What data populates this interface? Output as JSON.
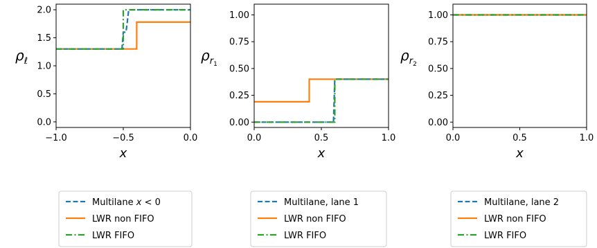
{
  "chart_data": [
    {
      "type": "line",
      "ylabel_base": "ρ",
      "ylabel_sub": "ℓ",
      "ylabel_subsub": "",
      "xlabel": "x",
      "xlim": [
        -1.0,
        0.0
      ],
      "ylim": [
        -0.1,
        2.1
      ],
      "xticks": [
        -1.0,
        -0.5,
        0.0
      ],
      "xtick_labels": [
        "−1.0",
        "−0.5",
        "0.0"
      ],
      "yticks": [
        0.0,
        0.5,
        1.0,
        1.5,
        2.0
      ],
      "ytick_labels": [
        "0.0",
        "0.5",
        "1.0",
        "1.5",
        "2.0"
      ],
      "legend": [
        {
          "text_parts": [
            "Multilane ",
            "x",
            " < 0"
          ],
          "italic_part": 1,
          "style": "dashed",
          "color": "#1f77b4"
        },
        {
          "text_parts": [
            "LWR non FIFO"
          ],
          "italic_part": -1,
          "style": "solid",
          "color": "#ff7f0e"
        },
        {
          "text_parts": [
            "LWR FIFO"
          ],
          "italic_part": -1,
          "style": "dashdot",
          "color": "#2ca02c"
        }
      ],
      "series": [
        {
          "name": "LWR non FIFO",
          "color": "#ff7f0e",
          "style": "solid",
          "x": [
            -1.0,
            -0.41,
            -0.41,
            -0.4,
            -0.4,
            0.0
          ],
          "y": [
            1.3,
            1.3,
            1.3,
            1.3,
            1.78,
            1.78
          ]
        },
        {
          "name": "Multilane x < 0",
          "color": "#1f77b4",
          "style": "dashed",
          "x": [
            -1.0,
            -0.51,
            -0.5,
            -0.48,
            -0.47,
            -0.46,
            0.0
          ],
          "y": [
            1.3,
            1.3,
            1.6,
            1.6,
            1.78,
            2.0,
            2.0
          ]
        },
        {
          "name": "LWR FIFO",
          "color": "#2ca02c",
          "style": "dashdot",
          "x": [
            -1.0,
            -0.5,
            -0.5,
            0.0
          ],
          "y": [
            1.3,
            1.3,
            2.0,
            2.0
          ]
        }
      ]
    },
    {
      "type": "line",
      "ylabel_base": "ρ",
      "ylabel_sub": "r",
      "ylabel_subsub": "1",
      "xlabel": "x",
      "xlim": [
        0.0,
        1.0
      ],
      "ylim": [
        -0.05,
        1.1
      ],
      "xticks": [
        0.0,
        0.5,
        1.0
      ],
      "xtick_labels": [
        "0.0",
        "0.5",
        "1.0"
      ],
      "yticks": [
        0.0,
        0.25,
        0.5,
        0.75,
        1.0
      ],
      "ytick_labels": [
        "0.00",
        "0.25",
        "0.50",
        "0.75",
        "1.00"
      ],
      "legend": [
        {
          "text_parts": [
            "Multilane, lane 1"
          ],
          "italic_part": -1,
          "style": "dashed",
          "color": "#1f77b4"
        },
        {
          "text_parts": [
            "LWR non FIFO"
          ],
          "italic_part": -1,
          "style": "solid",
          "color": "#ff7f0e"
        },
        {
          "text_parts": [
            "LWR FIFO"
          ],
          "italic_part": -1,
          "style": "dashdot",
          "color": "#2ca02c"
        }
      ],
      "series": [
        {
          "name": "LWR non FIFO",
          "color": "#ff7f0e",
          "style": "solid",
          "x": [
            0.0,
            0.41,
            0.41,
            1.0
          ],
          "y": [
            0.19,
            0.19,
            0.4,
            0.4
          ]
        },
        {
          "name": "Multilane, lane 1",
          "color": "#1f77b4",
          "style": "dashed",
          "x": [
            0.0,
            0.59,
            0.6,
            1.0
          ],
          "y": [
            0.0,
            0.0,
            0.4,
            0.4
          ]
        },
        {
          "name": "LWR FIFO",
          "color": "#2ca02c",
          "style": "dashdot",
          "x": [
            0.0,
            0.6,
            0.6,
            1.0
          ],
          "y": [
            0.0,
            0.0,
            0.4,
            0.4
          ]
        }
      ]
    },
    {
      "type": "line",
      "ylabel_base": "ρ",
      "ylabel_sub": "r",
      "ylabel_subsub": "2",
      "xlabel": "x",
      "xlim": [
        0.0,
        1.0
      ],
      "ylim": [
        -0.05,
        1.1
      ],
      "xticks": [
        0.0,
        0.5,
        1.0
      ],
      "xtick_labels": [
        "0.0",
        "0.5",
        "1.0"
      ],
      "yticks": [
        0.0,
        0.25,
        0.5,
        0.75,
        1.0
      ],
      "ytick_labels": [
        "0.00",
        "0.25",
        "0.50",
        "0.75",
        "1.00"
      ],
      "legend": [
        {
          "text_parts": [
            "Multilane, lane 2"
          ],
          "italic_part": -1,
          "style": "dashed",
          "color": "#1f77b4"
        },
        {
          "text_parts": [
            "LWR non FIFO"
          ],
          "italic_part": -1,
          "style": "solid",
          "color": "#ff7f0e"
        },
        {
          "text_parts": [
            "LWR FIFO"
          ],
          "italic_part": -1,
          "style": "dashdot",
          "color": "#2ca02c"
        }
      ],
      "series": [
        {
          "name": "Multilane, lane 2",
          "color": "#1f77b4",
          "style": "dashed",
          "x": [
            0.0,
            1.0
          ],
          "y": [
            1.0,
            1.0
          ]
        },
        {
          "name": "LWR non FIFO",
          "color": "#ff7f0e",
          "style": "solid",
          "x": [
            0.0,
            1.0
          ],
          "y": [
            1.0,
            1.0
          ]
        },
        {
          "name": "LWR FIFO",
          "color": "#2ca02c",
          "style": "dashdot",
          "x": [
            0.0,
            1.0
          ],
          "y": [
            1.0,
            1.0
          ]
        }
      ]
    }
  ]
}
